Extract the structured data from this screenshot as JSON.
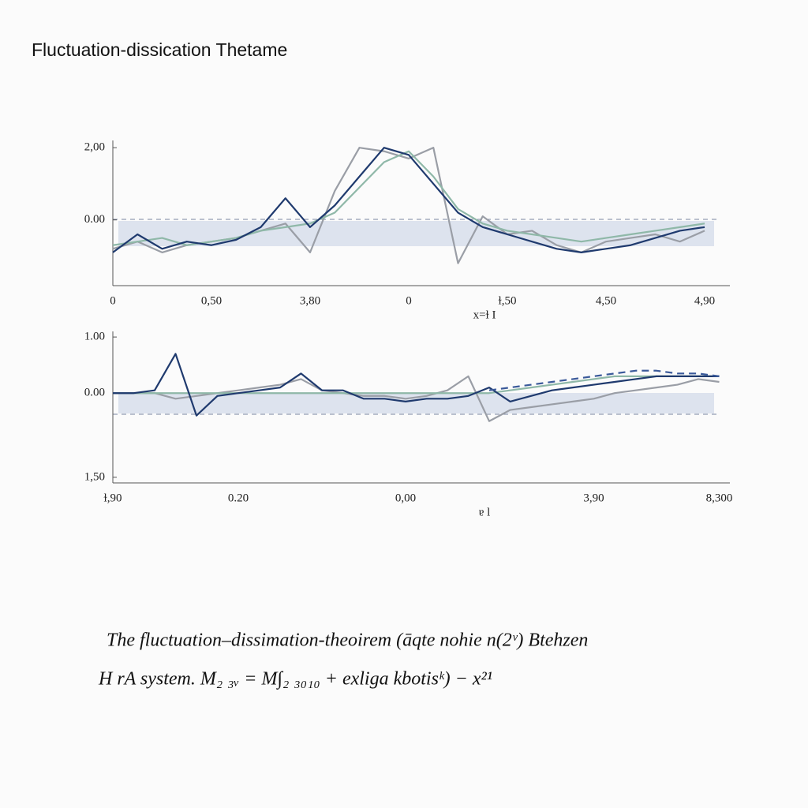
{
  "title": "Fluctuation-dissication Thetame",
  "caption": [
    "The fluctuation–dissimation-theoirem (āqte nohie n(2ᵛ) Btehzen",
    "H rA system. M₂ ₃ᵥ = M∫₂ ₃₀₁₀ + exliga kbotisᵏ) − x²¹"
  ],
  "chart_data": [
    {
      "type": "line",
      "xlabel": "x=ɫ I",
      "categories": [
        "0",
        null,
        null,
        null,
        "0,50",
        null,
        null,
        null,
        "3,80",
        null,
        null,
        null,
        "0",
        null,
        null,
        null,
        "ɫ,50",
        null,
        null,
        null,
        "4,50",
        null,
        null,
        null,
        "4,90"
      ],
      "ylim": [
        -1.82,
        2.2
      ],
      "yticks": [
        {
          "value": 2,
          "label": "2,00"
        },
        {
          "value": 0,
          "label": "0.00"
        }
      ],
      "series": [
        {
          "color": "#9a9ea6",
          "values": [
            -0.8,
            -0.6,
            -0.9,
            -0.7,
            -0.6,
            -0.5,
            -0.3,
            -0.1,
            -0.9,
            0.8,
            2.0,
            1.9,
            1.7,
            2.0,
            -1.2,
            0.1,
            -0.4,
            -0.3,
            -0.7,
            -0.9,
            -0.6,
            -0.5,
            -0.4,
            -0.6,
            -0.3
          ]
        },
        {
          "color": "#8fb8a8",
          "values": [
            -0.7,
            -0.6,
            -0.5,
            -0.7,
            -0.6,
            -0.5,
            -0.3,
            -0.2,
            -0.1,
            0.2,
            0.9,
            1.6,
            1.9,
            1.2,
            0.3,
            -0.1,
            -0.3,
            -0.4,
            -0.5,
            -0.6,
            -0.5,
            -0.4,
            -0.3,
            -0.2,
            -0.1
          ]
        },
        {
          "color": "#1f3a6e",
          "values": [
            -0.9,
            -0.4,
            -0.8,
            -0.6,
            -0.7,
            -0.55,
            -0.2,
            0.6,
            -0.2,
            0.4,
            1.2,
            2.0,
            1.8,
            1.0,
            0.2,
            -0.2,
            -0.4,
            -0.6,
            -0.8,
            -0.9,
            -0.8,
            -0.7,
            -0.5,
            -0.3,
            -0.2
          ]
        }
      ]
    },
    {
      "type": "line",
      "xlabel": "ɐ l",
      "categories": [
        "ɫ,90",
        null,
        null,
        null,
        null,
        null,
        "0.20",
        null,
        null,
        null,
        null,
        null,
        null,
        null,
        "0,00",
        null,
        null,
        null,
        null,
        null,
        null,
        null,
        null,
        "3,90",
        null,
        null,
        null,
        null,
        null,
        "8,300"
      ],
      "ylim": [
        -1.6,
        1.1
      ],
      "yticks": [
        {
          "value": 1,
          "label": "1.00"
        },
        {
          "value": 0,
          "label": "0.00"
        },
        {
          "value": -1.5,
          "label": "1,50"
        }
      ],
      "series": [
        {
          "color": "#9a9ea6",
          "values": [
            0,
            0,
            0,
            -0.1,
            -0.05,
            0,
            0.05,
            0.1,
            0.15,
            0.25,
            0.05,
            0,
            -0.05,
            -0.05,
            -0.1,
            -0.05,
            0.05,
            0.3,
            -0.5,
            -0.3,
            -0.25,
            -0.2,
            -0.15,
            -0.1,
            0,
            0.05,
            0.1,
            0.15,
            0.25,
            0.2
          ]
        },
        {
          "color": "#8fb8a8",
          "values": [
            0,
            0,
            0,
            0,
            0,
            0,
            0,
            0,
            0,
            0,
            0,
            0,
            0,
            0,
            0,
            0,
            0,
            0,
            0,
            0.05,
            0.1,
            0.15,
            0.2,
            0.25,
            0.3,
            0.3,
            0.3,
            0.3,
            0.3,
            0.3
          ]
        },
        {
          "color": "#1f3a6e",
          "values": [
            0,
            0,
            0.05,
            0.7,
            -0.4,
            -0.05,
            0,
            0.05,
            0.1,
            0.35,
            0.05,
            0.05,
            -0.1,
            -0.1,
            -0.15,
            -0.1,
            -0.1,
            -0.05,
            0.1,
            -0.15,
            -0.05,
            0.05,
            0.1,
            0.15,
            0.2,
            0.25,
            0.3,
            0.3,
            0.3,
            0.3
          ]
        },
        {
          "color": "#3b5a9a",
          "dashed": true,
          "values": [
            null,
            null,
            null,
            null,
            null,
            null,
            null,
            null,
            null,
            null,
            null,
            null,
            null,
            null,
            null,
            null,
            null,
            null,
            0.05,
            0.1,
            0.15,
            0.2,
            0.25,
            0.3,
            0.35,
            0.4,
            0.4,
            0.35,
            0.35,
            0.3
          ]
        }
      ]
    }
  ]
}
